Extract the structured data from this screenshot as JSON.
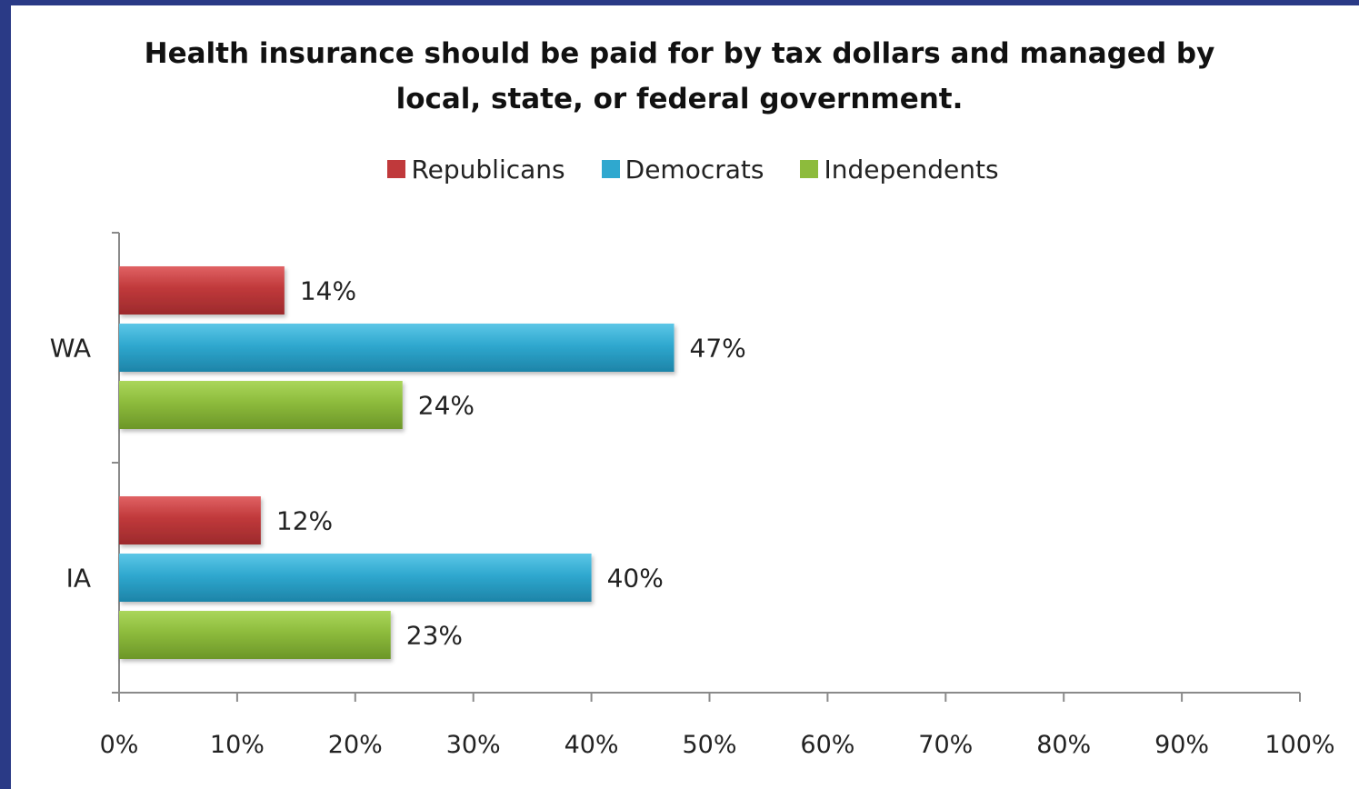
{
  "chart_data": {
    "type": "bar",
    "orientation": "horizontal",
    "title_lines": [
      "Health insurance should be paid for by tax dollars and managed by",
      "local, state, or federal government."
    ],
    "categories": [
      "WA",
      "IA"
    ],
    "series": [
      {
        "name": "Republicans",
        "values": [
          14,
          12
        ],
        "labels": [
          "14%",
          "12%"
        ],
        "color": "#c0393b"
      },
      {
        "name": "Democrats",
        "values": [
          47,
          40
        ],
        "labels": [
          "47%",
          "40%"
        ],
        "color": "#2fa8cf"
      },
      {
        "name": "Independents",
        "values": [
          24,
          23
        ],
        "labels": [
          "24%",
          "23%"
        ],
        "color": "#8dbb3c"
      }
    ],
    "xlim": [
      0,
      100
    ],
    "x_ticks": [
      "0%",
      "10%",
      "20%",
      "30%",
      "40%",
      "50%",
      "60%",
      "70%",
      "80%",
      "90%",
      "100%"
    ],
    "legend_position": "top",
    "grid": false
  }
}
